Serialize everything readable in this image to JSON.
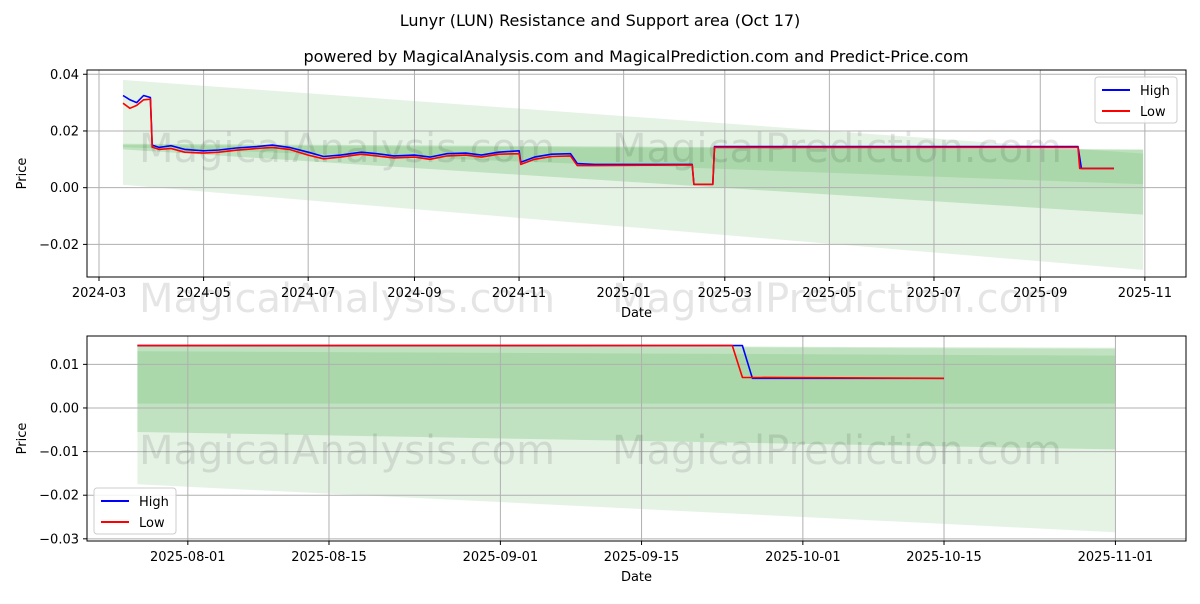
{
  "title": "Lunyr (LUN) Resistance and Support area (Oct 17)",
  "subtitle": "powered by MagicalAnalysis.com and MagicalPrediction.com and Predict-Price.com",
  "watermarks": [
    "MagicalAnalysis.com",
    "MagicalPrediction.com"
  ],
  "colors": {
    "high": "#0000ff",
    "low": "#ff0000",
    "band": "#2ca02c",
    "grid": "#b0b0b0"
  },
  "chart_data": [
    {
      "type": "line",
      "panel": "top",
      "xlabel": "Date",
      "ylabel": "Price",
      "xlim": [
        "2024-02-23",
        "2025-11-25"
      ],
      "ylim": [
        -0.0315,
        0.0415
      ],
      "xticks": [
        "2024-03",
        "2024-05",
        "2024-07",
        "2024-09",
        "2024-11",
        "2025-01",
        "2025-03",
        "2025-05",
        "2025-07",
        "2025-09",
        "2025-11"
      ],
      "yticks": [
        0.04,
        0.02,
        0.0,
        -0.02
      ],
      "ytick_labels": [
        "0.04",
        "0.02",
        "0.00",
        "−0.02"
      ],
      "grid": true,
      "legend": {
        "position": "top-right",
        "entries": [
          "High",
          "Low"
        ]
      },
      "bands": [
        {
          "x": [
            "2024-03-15",
            "2025-10-31"
          ],
          "upper": [
            0.038,
            0.012
          ],
          "lower": [
            0.001,
            -0.029
          ],
          "opacity": 0.12
        },
        {
          "x": [
            "2024-03-15",
            "2025-10-31"
          ],
          "upper": [
            0.0155,
            0.0135
          ],
          "lower": [
            0.0135,
            -0.0095
          ],
          "opacity": 0.2
        },
        {
          "x": [
            "2024-03-15",
            "2025-10-31"
          ],
          "upper": [
            0.015,
            0.0133
          ],
          "lower": [
            0.0143,
            0.0012
          ],
          "opacity": 0.15
        }
      ],
      "series": [
        {
          "name": "High",
          "x": [
            "2024-03-15",
            "2024-03-19",
            "2024-03-23",
            "2024-03-27",
            "2024-03-31",
            "2024-04-01",
            "2024-04-05",
            "2024-04-12",
            "2024-04-20",
            "2024-05-01",
            "2024-05-10",
            "2024-05-20",
            "2024-06-01",
            "2024-06-10",
            "2024-06-20",
            "2024-07-01",
            "2024-07-10",
            "2024-07-20",
            "2024-08-01",
            "2024-08-10",
            "2024-08-20",
            "2024-09-01",
            "2024-09-10",
            "2024-09-20",
            "2024-10-01",
            "2024-10-10",
            "2024-10-20",
            "2024-11-01",
            "2024-11-02",
            "2024-11-10",
            "2024-11-20",
            "2024-12-01",
            "2024-12-05",
            "2024-12-15",
            "2025-02-10",
            "2025-02-11",
            "2025-02-22",
            "2025-02-23",
            "2025-09-23",
            "2025-09-25",
            "2025-10-14"
          ],
          "values": [
            0.0325,
            0.031,
            0.03,
            0.0325,
            0.0318,
            0.015,
            0.0142,
            0.0148,
            0.0135,
            0.013,
            0.0133,
            0.014,
            0.0145,
            0.015,
            0.0142,
            0.0125,
            0.011,
            0.0115,
            0.0125,
            0.012,
            0.0112,
            0.0115,
            0.0108,
            0.012,
            0.0122,
            0.0115,
            0.0125,
            0.013,
            0.009,
            0.0108,
            0.0118,
            0.012,
            0.0085,
            0.0082,
            0.0082,
            0.0012,
            0.0012,
            0.0145,
            0.0145,
            0.0068,
            0.0068
          ]
        },
        {
          "name": "Low",
          "x": [
            "2024-03-15",
            "2024-03-19",
            "2024-03-23",
            "2024-03-27",
            "2024-03-31",
            "2024-04-01",
            "2024-04-05",
            "2024-04-12",
            "2024-04-20",
            "2024-05-01",
            "2024-05-10",
            "2024-05-20",
            "2024-06-01",
            "2024-06-10",
            "2024-06-20",
            "2024-07-01",
            "2024-07-10",
            "2024-07-20",
            "2024-08-01",
            "2024-08-10",
            "2024-08-20",
            "2024-09-01",
            "2024-09-10",
            "2024-09-20",
            "2024-10-01",
            "2024-10-10",
            "2024-10-20",
            "2024-11-01",
            "2024-11-02",
            "2024-11-10",
            "2024-11-20",
            "2024-12-01",
            "2024-12-05",
            "2024-12-15",
            "2025-02-10",
            "2025-02-11",
            "2025-02-22",
            "2025-02-23",
            "2025-09-23",
            "2025-09-24",
            "2025-10-14"
          ],
          "values": [
            0.0298,
            0.028,
            0.029,
            0.031,
            0.0312,
            0.0143,
            0.0135,
            0.0138,
            0.0125,
            0.0122,
            0.0125,
            0.0132,
            0.0138,
            0.0142,
            0.0135,
            0.0115,
            0.0102,
            0.0108,
            0.0118,
            0.0112,
            0.0105,
            0.0108,
            0.01,
            0.0112,
            0.0115,
            0.0108,
            0.0118,
            0.012,
            0.0082,
            0.01,
            0.011,
            0.0112,
            0.0078,
            0.0078,
            0.008,
            0.0012,
            0.0012,
            0.0142,
            0.0142,
            0.0068,
            0.0068
          ]
        }
      ]
    },
    {
      "type": "line",
      "panel": "bottom",
      "xlabel": "Date",
      "ylabel": "Price",
      "xlim": [
        "2025-07-22",
        "2025-11-08"
      ],
      "ylim": [
        -0.0305,
        0.0165
      ],
      "xticks": [
        "2025-08-01",
        "2025-08-15",
        "2025-09-01",
        "2025-09-15",
        "2025-10-01",
        "2025-10-15",
        "2025-11-01"
      ],
      "yticks": [
        0.01,
        0.0,
        -0.01,
        -0.02,
        -0.03
      ],
      "ytick_labels": [
        "0.01",
        "0.00",
        "−0.01",
        "−0.02",
        "−0.03"
      ],
      "grid": true,
      "legend": {
        "position": "bottom-left",
        "entries": [
          "High",
          "Low"
        ]
      },
      "bands": [
        {
          "x": [
            "2025-07-27",
            "2025-11-01"
          ],
          "upper": [
            0.0145,
            0.0135
          ],
          "lower": [
            -0.0175,
            -0.0285
          ],
          "opacity": 0.12
        },
        {
          "x": [
            "2025-07-27",
            "2025-11-01"
          ],
          "upper": [
            0.0145,
            0.0138
          ],
          "lower": [
            -0.0055,
            -0.0095
          ],
          "opacity": 0.2
        },
        {
          "x": [
            "2025-07-27",
            "2025-11-01"
          ],
          "upper": [
            0.013,
            0.012
          ],
          "lower": [
            0.001,
            0.001
          ],
          "opacity": 0.15
        }
      ],
      "series": [
        {
          "name": "High",
          "x": [
            "2025-07-27",
            "2025-09-24",
            "2025-09-25",
            "2025-09-26",
            "2025-10-15"
          ],
          "values": [
            0.0143,
            0.0143,
            0.0143,
            0.0068,
            0.0068
          ]
        },
        {
          "name": "Low",
          "x": [
            "2025-07-27",
            "2025-09-24",
            "2025-09-25",
            "2025-10-15"
          ],
          "values": [
            0.0143,
            0.0143,
            0.007,
            0.0068
          ]
        }
      ]
    }
  ]
}
